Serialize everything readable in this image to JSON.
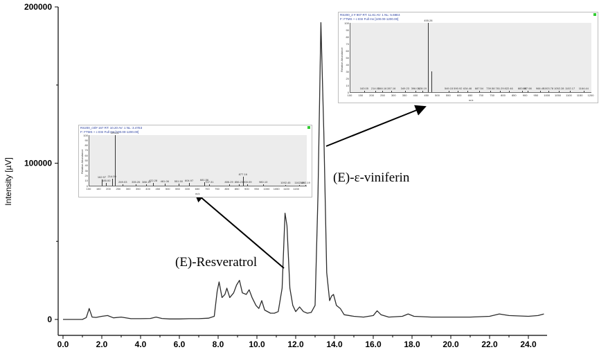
{
  "chart_data": {
    "type": "line",
    "title": "",
    "xlabel": "",
    "ylabel": "Intensity [µV]",
    "xlim": [
      -0.2,
      24.8
    ],
    "ylim": [
      -10000,
      200000
    ],
    "x_ticks": [
      "0.0",
      "2.0",
      "4.0",
      "6.0",
      "8.0",
      "10.0",
      "12.0",
      "14.0",
      "16.0",
      "18.0",
      "20.0",
      "22.0",
      "24.0"
    ],
    "y_ticks": [
      "0",
      "100000",
      "200000"
    ],
    "grid": false,
    "series": [
      {
        "points": [
          [
            0.0,
            0
          ],
          [
            1.0,
            0
          ],
          [
            1.2,
            1200
          ],
          [
            1.35,
            7000
          ],
          [
            1.5,
            1500
          ],
          [
            1.7,
            1300
          ],
          [
            2.0,
            2000
          ],
          [
            2.3,
            2500
          ],
          [
            2.6,
            1000
          ],
          [
            3.0,
            1500
          ],
          [
            3.5,
            500
          ],
          [
            4.0,
            500
          ],
          [
            4.5,
            600
          ],
          [
            4.8,
            1500
          ],
          [
            5.1,
            600
          ],
          [
            5.5,
            300
          ],
          [
            6.0,
            300
          ],
          [
            6.5,
            500
          ],
          [
            7.0,
            500
          ],
          [
            7.5,
            800
          ],
          [
            7.8,
            2000
          ],
          [
            7.95,
            18000
          ],
          [
            8.05,
            24000
          ],
          [
            8.2,
            14000
          ],
          [
            8.35,
            16000
          ],
          [
            8.45,
            20000
          ],
          [
            8.6,
            14000
          ],
          [
            8.8,
            17000
          ],
          [
            8.95,
            22000
          ],
          [
            9.1,
            25000
          ],
          [
            9.25,
            17000
          ],
          [
            9.45,
            16000
          ],
          [
            9.6,
            19000
          ],
          [
            9.75,
            14000
          ],
          [
            9.95,
            9000
          ],
          [
            10.1,
            7000
          ],
          [
            10.25,
            12000
          ],
          [
            10.4,
            6000
          ],
          [
            10.7,
            4000
          ],
          [
            10.9,
            4000
          ],
          [
            11.1,
            5000
          ],
          [
            11.3,
            20000
          ],
          [
            11.45,
            68000
          ],
          [
            11.55,
            60000
          ],
          [
            11.7,
            20000
          ],
          [
            11.85,
            9000
          ],
          [
            12.0,
            5000
          ],
          [
            12.2,
            8000
          ],
          [
            12.4,
            5000
          ],
          [
            12.6,
            4000
          ],
          [
            12.8,
            4500
          ],
          [
            13.0,
            9000
          ],
          [
            13.15,
            80000
          ],
          [
            13.3,
            190000
          ],
          [
            13.45,
            120000
          ],
          [
            13.6,
            30000
          ],
          [
            13.75,
            12000
          ],
          [
            13.85,
            15000
          ],
          [
            13.95,
            16000
          ],
          [
            14.1,
            9000
          ],
          [
            14.3,
            7000
          ],
          [
            14.5,
            3000
          ],
          [
            15.0,
            2000
          ],
          [
            15.5,
            1500
          ],
          [
            16.0,
            2500
          ],
          [
            16.2,
            5500
          ],
          [
            16.4,
            3000
          ],
          [
            16.8,
            1500
          ],
          [
            17.5,
            2000
          ],
          [
            17.8,
            3500
          ],
          [
            18.1,
            2000
          ],
          [
            19.0,
            1500
          ],
          [
            20.0,
            1500
          ],
          [
            21.0,
            1500
          ],
          [
            22.0,
            2000
          ],
          [
            22.5,
            3500
          ],
          [
            23.0,
            2500
          ],
          [
            24.0,
            2000
          ],
          [
            24.5,
            2500
          ],
          [
            24.8,
            3500
          ]
        ]
      }
    ],
    "annotations": [
      {
        "text": "(E)-Resveratrol",
        "x": 11.45,
        "y": 68000
      },
      {
        "text": "(E)-ε-viniferin",
        "x": 13.3,
        "y": 190000
      }
    ],
    "insets": [
      {
        "header_line1": "RS200_ctrl# 167  RT: 10.20  AV: 1  NL: 3.47E3",
        "header_line2": "F: FTMS + c ESI Full ms [100.00-1200.00]",
        "y_title": "Relative Abundance",
        "x_title": "m/z",
        "y_ticks": [
          "100",
          "90",
          "80",
          "70",
          "60",
          "50",
          "40",
          "30",
          "20",
          "10",
          "0"
        ],
        "x_ticks": [
          "100",
          "150",
          "200",
          "250",
          "300",
          "350",
          "400",
          "450",
          "500",
          "550",
          "600",
          "650",
          "700",
          "750",
          "800",
          "850",
          "900",
          "950",
          "1000",
          "1050",
          "1100",
          "1150"
        ],
        "xlim": [
          100,
          1200
        ],
        "peaks": [
          {
            "mz": 162.97,
            "rel": 12,
            "label": "162.97"
          },
          {
            "mz": 185.0,
            "rel": 5,
            "label": "185.00"
          },
          {
            "mz": 229.11,
            "rel": 100,
            "label": "229.11"
          },
          {
            "mz": 214.09,
            "rel": 14,
            "label": "214.09"
          },
          {
            "mz": 269.03,
            "rel": 3,
            "label": "269.03"
          },
          {
            "mz": 335.26,
            "rel": 3,
            "label": "335.26"
          },
          {
            "mz": 388.19,
            "rel": 3,
            "label": "388.19"
          },
          {
            "mz": 422.28,
            "rel": 5,
            "label": "422.28"
          },
          {
            "mz": 481.06,
            "rel": 4,
            "label": "481.06"
          },
          {
            "mz": 551.5,
            "rel": 4,
            "label": "551.50"
          },
          {
            "mz": 604.97,
            "rel": 5,
            "label": "604.97"
          },
          {
            "mz": 681.56,
            "rel": 7,
            "label": "681.56"
          },
          {
            "mz": 707.31,
            "rel": 3,
            "label": "707.31"
          },
          {
            "mz": 806.29,
            "rel": 3,
            "label": "806.29"
          },
          {
            "mz": 856.23,
            "rel": 3,
            "label": "856.23"
          },
          {
            "mz": 877.16,
            "rel": 18,
            "label": "877.16"
          },
          {
            "mz": 900.09,
            "rel": 3,
            "label": "900.09"
          },
          {
            "mz": 980.1,
            "rel": 3,
            "label": "980.10"
          },
          {
            "mz": 1092.45,
            "rel": 2,
            "label": "1092.45"
          },
          {
            "mz": 1162.48,
            "rel": 2,
            "label": "1162.48"
          },
          {
            "mz": 1192.19,
            "rel": 2,
            "label": "1192.19"
          }
        ]
      },
      {
        "header_line1": "RS200_2  # 907  RT: 11.81  AV: 1  NL: 5.69E4",
        "header_line2": "F: FTMS + c ESI Full ms [100.00-1200.00]",
        "y_title": "Relative Abundance",
        "x_title": "m/z",
        "y_ticks": [
          "100",
          "90",
          "80",
          "70",
          "60",
          "50",
          "40",
          "30",
          "20",
          "10",
          "0"
        ],
        "x_ticks": [
          "100",
          "150",
          "200",
          "250",
          "300",
          "350",
          "400",
          "450",
          "500",
          "550",
          "600",
          "650",
          "700",
          "750",
          "800",
          "850",
          "900",
          "950",
          "1000",
          "1050",
          "1100",
          "1150",
          "1200"
        ],
        "xlim": [
          100,
          1200
        ],
        "peaks": [
          {
            "mz": 163.05,
            "rel": 2,
            "label": "163.05"
          },
          {
            "mz": 214.05,
            "rel": 2,
            "label": "214.05"
          },
          {
            "mz": 246.16,
            "rel": 2,
            "label": "246.16"
          },
          {
            "mz": 287.16,
            "rel": 2,
            "label": "287.16"
          },
          {
            "mz": 349.23,
            "rel": 2,
            "label": "349.23"
          },
          {
            "mz": 396.03,
            "rel": 2,
            "label": "396.03"
          },
          {
            "mz": 428.19,
            "rel": 2,
            "label": "428.19"
          },
          {
            "mz": 455.28,
            "rel": 100,
            "label": "455.28"
          },
          {
            "mz": 469.0,
            "rel": 30,
            "label": ""
          },
          {
            "mz": 549.15,
            "rel": 2,
            "label": "549.15"
          },
          {
            "mz": 590.92,
            "rel": 2,
            "label": "590.92"
          },
          {
            "mz": 634.46,
            "rel": 2,
            "label": "634.46"
          },
          {
            "mz": 687.54,
            "rel": 2,
            "label": "687.54"
          },
          {
            "mz": 739.58,
            "rel": 2,
            "label": "739.58"
          },
          {
            "mz": 781.29,
            "rel": 2,
            "label": "781.29"
          },
          {
            "mz": 822.46,
            "rel": 2,
            "label": "822.46"
          },
          {
            "mz": 883.88,
            "rel": 2,
            "label": "883.88"
          },
          {
            "mz": 907.98,
            "rel": 2,
            "label": "907.98"
          },
          {
            "mz": 966.49,
            "rel": 2,
            "label": "966.49"
          },
          {
            "mz": 1003.78,
            "rel": 2,
            "label": "1003.78"
          },
          {
            "mz": 1052.28,
            "rel": 2,
            "label": "1052.28"
          },
          {
            "mz": 1102.17,
            "rel": 2,
            "label": "1102.17"
          },
          {
            "mz": 1164.44,
            "rel": 2,
            "label": "1164.44"
          }
        ]
      }
    ]
  }
}
